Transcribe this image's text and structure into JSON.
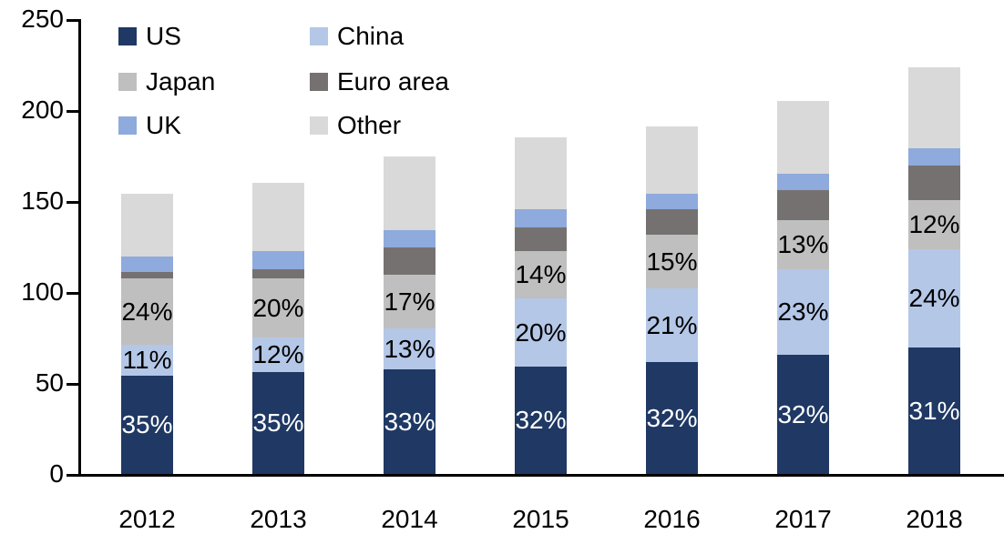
{
  "chart_data": {
    "type": "bar",
    "stacked": true,
    "orientation": "vertical",
    "categories": [
      "2012",
      "2013",
      "2014",
      "2015",
      "2016",
      "2017",
      "2018"
    ],
    "series": [
      {
        "name": "US",
        "color": "#1F3864",
        "values": [
          54,
          56,
          57.5,
          59,
          61.5,
          65.5,
          69.5
        ],
        "labels": [
          "35%",
          "35%",
          "33%",
          "32%",
          "32%",
          "32%",
          "31%"
        ],
        "label_color": "#FFFFFF"
      },
      {
        "name": "China",
        "color": "#B4C7E7",
        "values": [
          17,
          19,
          22.5,
          37.5,
          40.5,
          47,
          54
        ],
        "labels": [
          "11%",
          "12%",
          "13%",
          "20%",
          "21%",
          "23%",
          "24%"
        ],
        "label_color": "#000000"
      },
      {
        "name": "Japan",
        "color": "#BFBFBF",
        "values": [
          36.5,
          32.5,
          29.5,
          26,
          29.5,
          27,
          27
        ],
        "labels": [
          "24%",
          "20%",
          "17%",
          "14%",
          "15%",
          "13%",
          "12%"
        ],
        "label_color": "#000000"
      },
      {
        "name": "Euro area",
        "color": "#767171",
        "values": [
          3.5,
          5,
          15,
          13,
          14,
          16.5,
          19
        ],
        "labels": null,
        "label_color": null
      },
      {
        "name": "UK",
        "color": "#8FAADC",
        "values": [
          8.5,
          10,
          9.5,
          10,
          8.5,
          9,
          9.5
        ],
        "labels": null,
        "label_color": null
      },
      {
        "name": "Other",
        "color": "#D9D9D9",
        "values": [
          34.5,
          37.5,
          40.5,
          39.5,
          37,
          40,
          44.5
        ],
        "labels": null,
        "label_color": null
      }
    ],
    "totals": [
      154,
      160,
      174.5,
      185,
      191,
      205,
      223.5
    ],
    "ylim": [
      0,
      250
    ],
    "ytick_labels": [
      "0",
      "50",
      "100",
      "150",
      "200",
      "250"
    ],
    "ytick_values": [
      0,
      50,
      100,
      150,
      200,
      250
    ],
    "legend_position": "top-left",
    "legend_columns": 2,
    "legend_order_row_major": [
      "US",
      "China",
      "Japan",
      "Euro area",
      "UK",
      "Other"
    ],
    "grid": false,
    "axis_color": "#000000",
    "text_color": "#000000"
  }
}
